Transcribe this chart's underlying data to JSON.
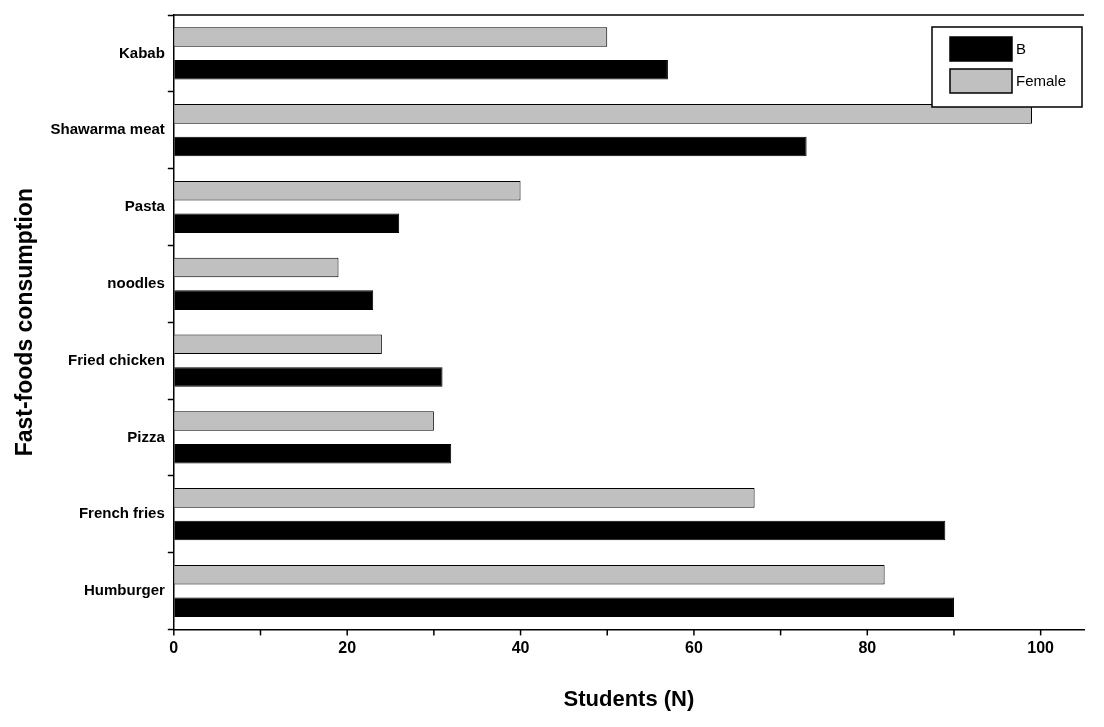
{
  "chart_data": {
    "type": "bar",
    "orientation": "horizontal",
    "xlabel": "Students (N)",
    "ylabel": "Fast-foods consumption",
    "categories": [
      "Kabab",
      "Shawarma meat",
      "Pasta",
      "noodles",
      "Fried chicken",
      "Pizza",
      "French fries",
      "Humburger"
    ],
    "series": [
      {
        "name": "B",
        "color": "#000000",
        "values": [
          57,
          73,
          26,
          23,
          31,
          32,
          89,
          90
        ]
      },
      {
        "name": "Female",
        "color": "#c0c0c0",
        "values": [
          50,
          99,
          40,
          19,
          24,
          30,
          67,
          82
        ]
      }
    ],
    "xlim": [
      0,
      105
    ],
    "xticks": [
      0,
      {
        "value": 10,
        "label": null
      },
      20,
      {
        "value": 30,
        "label": null
      },
      40,
      {
        "value": 50,
        "label": null
      },
      60,
      {
        "value": 70,
        "label": null
      },
      80,
      {
        "value": 90,
        "label": null
      },
      100
    ],
    "grid": false,
    "legend": "top right"
  }
}
